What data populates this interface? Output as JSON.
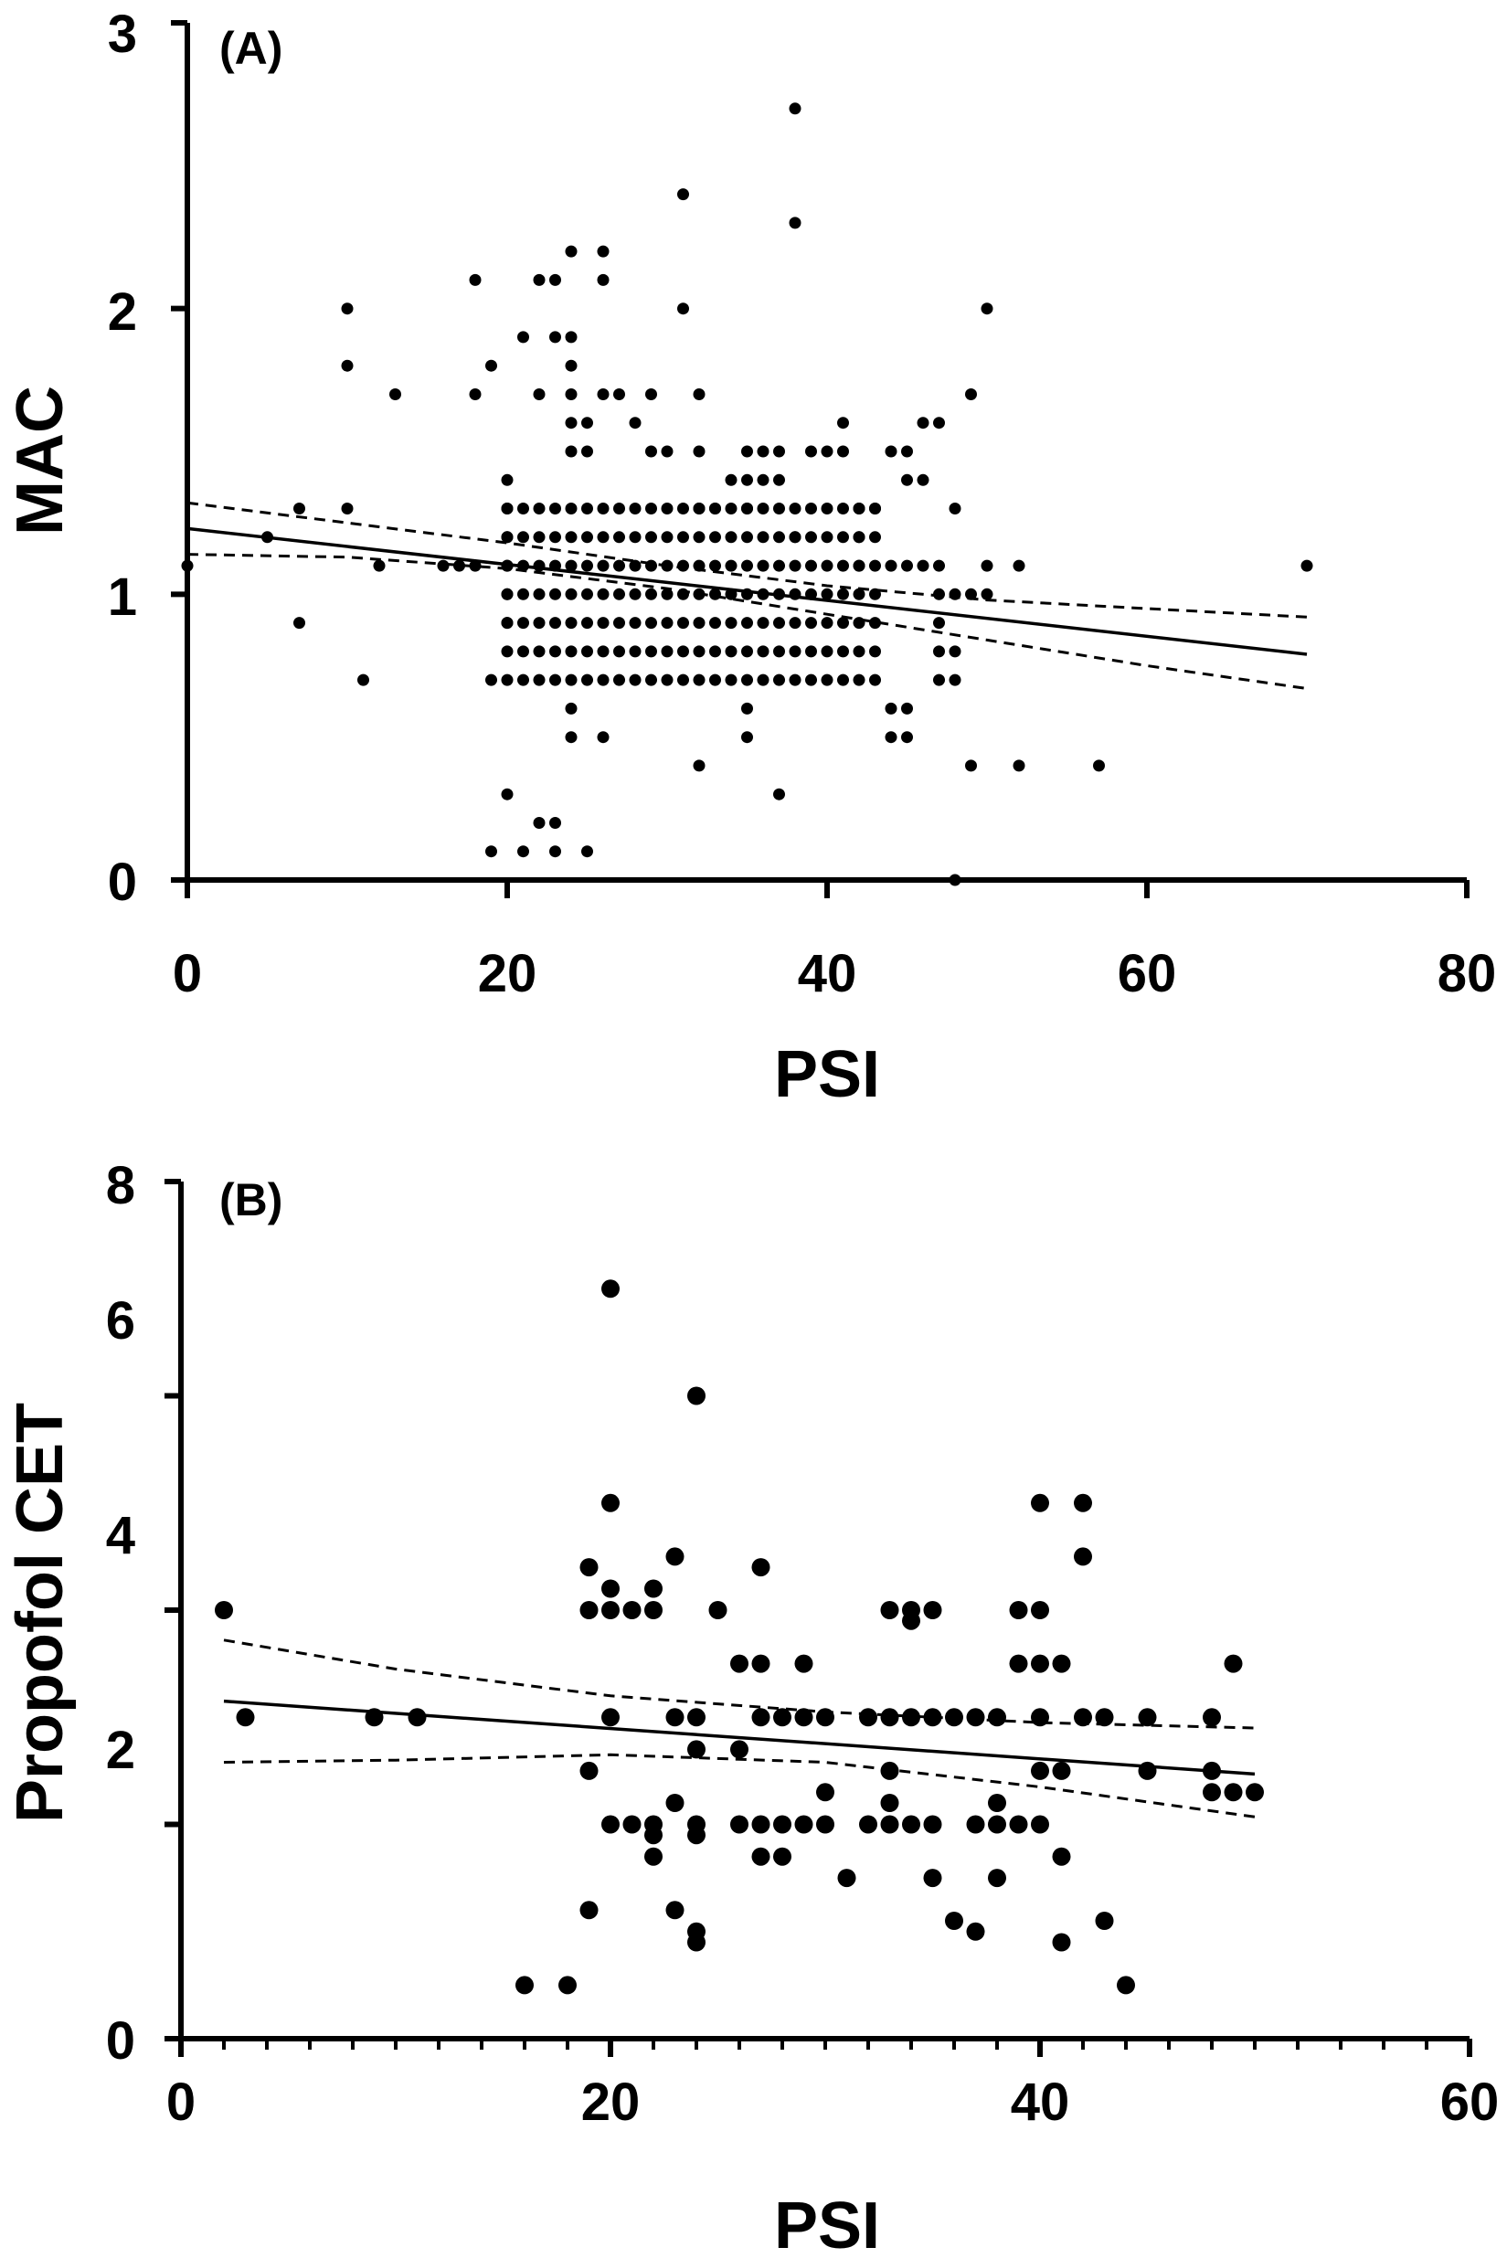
{
  "chart_data": [
    {
      "type": "scatter",
      "panel_label": "(A)",
      "xlabel": "PSI",
      "ylabel": "MAC",
      "xlim": [
        0,
        80
      ],
      "ylim": [
        0,
        3
      ],
      "x_ticks": [
        "0",
        "20",
        "40",
        "60",
        "80"
      ],
      "y_ticks": [
        "0",
        "1",
        "2",
        "3"
      ],
      "grid": false,
      "colors": {
        "points": "#000000",
        "lines": "#000000"
      },
      "regression": {
        "x": [
          0,
          70
        ],
        "y": [
          1.23,
          0.79
        ]
      },
      "confidence_band": {
        "upper": {
          "x": [
            0,
            10,
            20,
            30,
            40,
            50,
            60,
            70
          ],
          "y": [
            1.32,
            1.25,
            1.18,
            1.1,
            1.03,
            0.98,
            0.95,
            0.92
          ]
        },
        "lower": {
          "x": [
            0,
            10,
            20,
            30,
            40,
            50,
            60,
            70
          ],
          "y": [
            1.14,
            1.13,
            1.09,
            1.02,
            0.93,
            0.84,
            0.75,
            0.67
          ]
        }
      },
      "points": [
        [
          0,
          1.1
        ],
        [
          5,
          1.2
        ],
        [
          7,
          1.3
        ],
        [
          7,
          0.9
        ],
        [
          10,
          2.0
        ],
        [
          10,
          1.8
        ],
        [
          10,
          1.3
        ],
        [
          11,
          0.7
        ],
        [
          12,
          1.1
        ],
        [
          13,
          1.7
        ],
        [
          16,
          1.1
        ],
        [
          17,
          1.1
        ],
        [
          18,
          2.1
        ],
        [
          18,
          1.7
        ],
        [
          18,
          1.1
        ],
        [
          19,
          1.8
        ],
        [
          19,
          0.7
        ],
        [
          19,
          0.1
        ],
        [
          20,
          1.4
        ],
        [
          20,
          1.3
        ],
        [
          20,
          1.2
        ],
        [
          20,
          1.1
        ],
        [
          20,
          1.0
        ],
        [
          20,
          0.9
        ],
        [
          20,
          0.3
        ],
        [
          21,
          1.9
        ],
        [
          21,
          0.1
        ],
        [
          22,
          2.1
        ],
        [
          22,
          1.7
        ],
        [
          22,
          0.2
        ],
        [
          23,
          2.1
        ],
        [
          23,
          1.9
        ],
        [
          23,
          0.2
        ],
        [
          23,
          0.1
        ],
        [
          24,
          2.2
        ],
        [
          24,
          1.9
        ],
        [
          24,
          1.8
        ],
        [
          24,
          1.7
        ],
        [
          24,
          1.6
        ],
        [
          24,
          1.5
        ],
        [
          24,
          0.6
        ],
        [
          24,
          0.5
        ],
        [
          25,
          1.6
        ],
        [
          25,
          1.5
        ],
        [
          25,
          0.1
        ],
        [
          26,
          2.2
        ],
        [
          26,
          2.1
        ],
        [
          26,
          1.7
        ],
        [
          26,
          0.5
        ],
        [
          27,
          1.7
        ],
        [
          28,
          1.6
        ],
        [
          29,
          1.7
        ],
        [
          29,
          1.5
        ],
        [
          30,
          1.5
        ],
        [
          31,
          2.4
        ],
        [
          31,
          2.0
        ],
        [
          32,
          1.7
        ],
        [
          32,
          1.5
        ],
        [
          32,
          1.3
        ],
        [
          32,
          0.4
        ],
        [
          33,
          1.3
        ],
        [
          34,
          1.4
        ],
        [
          35,
          1.5
        ],
        [
          35,
          1.4
        ],
        [
          35,
          1.3
        ],
        [
          35,
          0.6
        ],
        [
          35,
          0.5
        ],
        [
          36,
          1.5
        ],
        [
          36,
          1.4
        ],
        [
          37,
          1.5
        ],
        [
          37,
          1.4
        ],
        [
          37,
          0.3
        ],
        [
          38,
          2.7
        ],
        [
          38,
          2.3
        ],
        [
          38,
          1.2
        ],
        [
          39,
          1.5
        ],
        [
          40,
          1.5
        ],
        [
          41,
          1.6
        ],
        [
          41,
          1.5
        ],
        [
          42,
          1.3
        ],
        [
          42,
          1.2
        ],
        [
          42,
          1.1
        ],
        [
          43,
          1.3
        ],
        [
          44,
          1.5
        ],
        [
          44,
          1.1
        ],
        [
          44,
          0.6
        ],
        [
          44,
          0.5
        ],
        [
          45,
          1.5
        ],
        [
          45,
          1.4
        ],
        [
          45,
          1.1
        ],
        [
          45,
          0.6
        ],
        [
          45,
          0.5
        ],
        [
          46,
          1.6
        ],
        [
          46,
          1.4
        ],
        [
          46,
          1.1
        ],
        [
          47,
          1.6
        ],
        [
          47,
          1.1
        ],
        [
          47,
          1.0
        ],
        [
          47,
          0.9
        ],
        [
          47,
          0.8
        ],
        [
          47,
          0.7
        ],
        [
          48,
          1.3
        ],
        [
          48,
          1.0
        ],
        [
          48,
          0.8
        ],
        [
          48,
          0.7
        ],
        [
          48,
          0.0
        ],
        [
          49,
          1.7
        ],
        [
          49,
          1.0
        ],
        [
          49,
          0.4
        ],
        [
          50,
          2.0
        ],
        [
          50,
          1.1
        ],
        [
          50,
          1.0
        ],
        [
          52,
          1.1
        ],
        [
          52,
          0.4
        ],
        [
          57,
          0.4
        ],
        [
          70,
          1.1
        ]
      ],
      "point_grid": {
        "x_from": 20,
        "x_to": 43,
        "y_values": [
          0.7,
          0.8,
          0.9,
          1.0,
          1.1,
          1.2,
          1.3
        ]
      },
      "point_radius": 6.5
    },
    {
      "type": "scatter",
      "panel_label": "(B)",
      "xlabel": "PSI",
      "ylabel": "Propofol CET",
      "xlim": [
        0,
        60
      ],
      "ylim": [
        0,
        8
      ],
      "x_ticks": [
        "0",
        "20",
        "40",
        "60"
      ],
      "y_ticks": [
        "0",
        "2",
        "4",
        "6",
        "8"
      ],
      "grid": false,
      "colors": {
        "points": "#000000",
        "lines": "#000000"
      },
      "regression": {
        "x": [
          2,
          50
        ],
        "y": [
          3.15,
          2.47
        ]
      },
      "confidence_band": {
        "upper": {
          "x": [
            2,
            10,
            20,
            30,
            40,
            50
          ],
          "y": [
            3.72,
            3.45,
            3.2,
            3.05,
            2.95,
            2.9
          ]
        },
        "lower": {
          "x": [
            2,
            10,
            20,
            30,
            40,
            50
          ],
          "y": [
            2.58,
            2.6,
            2.65,
            2.58,
            2.35,
            2.07
          ]
        }
      },
      "points": [
        [
          2,
          4.0
        ],
        [
          3,
          3.0
        ],
        [
          9,
          3.0
        ],
        [
          11,
          3.0
        ],
        [
          16,
          0.5
        ],
        [
          18,
          0.5
        ],
        [
          19,
          4.4
        ],
        [
          19,
          4.0
        ],
        [
          19,
          2.5
        ],
        [
          19,
          1.2
        ],
        [
          20,
          7.0
        ],
        [
          20,
          5.0
        ],
        [
          20,
          4.2
        ],
        [
          20,
          4.0
        ],
        [
          20,
          3.0
        ],
        [
          20,
          2.0
        ],
        [
          21,
          4.0
        ],
        [
          21,
          2.0
        ],
        [
          22,
          4.2
        ],
        [
          22,
          4.0
        ],
        [
          22,
          2.0
        ],
        [
          22,
          1.9
        ],
        [
          22,
          1.7
        ],
        [
          23,
          4.5
        ],
        [
          23,
          3.0
        ],
        [
          23,
          2.2
        ],
        [
          23,
          1.2
        ],
        [
          24,
          6.0
        ],
        [
          24,
          3.0
        ],
        [
          24,
          2.7
        ],
        [
          24,
          2.0
        ],
        [
          24,
          1.9
        ],
        [
          24,
          1.0
        ],
        [
          24,
          0.9
        ],
        [
          25,
          4.0
        ],
        [
          26,
          3.5
        ],
        [
          26,
          2.7
        ],
        [
          26,
          2.0
        ],
        [
          27,
          4.4
        ],
        [
          27,
          3.5
        ],
        [
          27,
          3.0
        ],
        [
          27,
          2.0
        ],
        [
          27,
          1.7
        ],
        [
          28,
          3.0
        ],
        [
          28,
          2.0
        ],
        [
          28,
          1.7
        ],
        [
          29,
          3.5
        ],
        [
          29,
          3.0
        ],
        [
          29,
          2.0
        ],
        [
          30,
          3.0
        ],
        [
          30,
          2.3
        ],
        [
          30,
          2.0
        ],
        [
          31,
          1.5
        ],
        [
          32,
          3.0
        ],
        [
          32,
          2.0
        ],
        [
          33,
          4.0
        ],
        [
          33,
          3.0
        ],
        [
          33,
          2.5
        ],
        [
          33,
          2.2
        ],
        [
          33,
          2.0
        ],
        [
          34,
          4.0
        ],
        [
          34,
          3.9
        ],
        [
          34,
          3.0
        ],
        [
          34,
          2.0
        ],
        [
          35,
          4.0
        ],
        [
          35,
          3.0
        ],
        [
          35,
          2.0
        ],
        [
          35,
          1.5
        ],
        [
          36,
          3.0
        ],
        [
          36,
          1.1
        ],
        [
          37,
          3.0
        ],
        [
          37,
          2.0
        ],
        [
          37,
          1.0
        ],
        [
          38,
          3.0
        ],
        [
          38,
          2.2
        ],
        [
          38,
          2.0
        ],
        [
          38,
          1.5
        ],
        [
          39,
          4.0
        ],
        [
          39,
          3.5
        ],
        [
          39,
          2.0
        ],
        [
          40,
          5.0
        ],
        [
          40,
          4.0
        ],
        [
          40,
          3.5
        ],
        [
          40,
          3.0
        ],
        [
          40,
          2.5
        ],
        [
          40,
          2.0
        ],
        [
          41,
          3.5
        ],
        [
          41,
          2.5
        ],
        [
          41,
          1.7
        ],
        [
          41,
          0.9
        ],
        [
          42,
          5.0
        ],
        [
          42,
          4.5
        ],
        [
          42,
          3.0
        ],
        [
          43,
          3.0
        ],
        [
          43,
          1.1
        ],
        [
          44,
          0.5
        ],
        [
          45,
          3.0
        ],
        [
          45,
          2.5
        ],
        [
          48,
          3.0
        ],
        [
          48,
          2.5
        ],
        [
          48,
          2.3
        ],
        [
          49,
          3.5
        ],
        [
          49,
          2.3
        ],
        [
          50,
          2.3
        ]
      ],
      "point_radius": 10
    }
  ]
}
